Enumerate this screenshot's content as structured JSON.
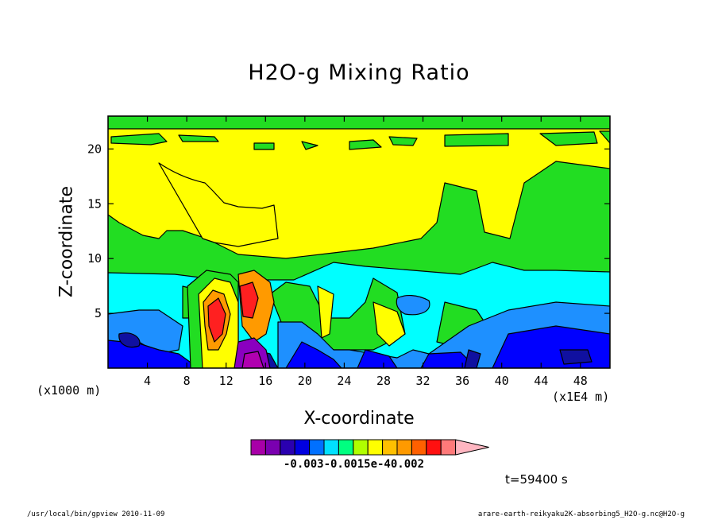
{
  "chart_data": {
    "type": "heatmap",
    "title": "H2O-g Mixing Ratio",
    "xlabel": "X-coordinate",
    "ylabel": "Z-coordinate",
    "x_unit_left": "(x1000 m)",
    "x_unit_right": "(x1E4 m)",
    "xlim": [
      0,
      51
    ],
    "ylim": [
      0,
      23
    ],
    "xticks": [
      "4",
      "8",
      "12",
      "16",
      "20",
      "24",
      "28",
      "32",
      "36",
      "40",
      "44",
      "48"
    ],
    "xtick_values": [
      4,
      8,
      12,
      16,
      20,
      24,
      28,
      32,
      36,
      40,
      44,
      48
    ],
    "yticks": [
      "5",
      "10",
      "15",
      "20"
    ],
    "ytick_values": [
      5,
      10,
      15,
      20
    ],
    "colorbar_tick_text": "-0.003-0.0015e-40.002",
    "colorbar_colors": [
      "#a800a8",
      "#7a00b0",
      "#2a00b0",
      "#0000e0",
      "#0070ff",
      "#00e0ff",
      "#00ff80",
      "#b0ff00",
      "#ffff00",
      "#ffc000",
      "#ff9a00",
      "#ff6000",
      "#ff1010",
      "#ff7a7a",
      "#ffb6c1"
    ],
    "field_colors": {
      "green": "#22dd22",
      "yellow": "#ffff00",
      "cyan": "#00ffff",
      "lightblue": "#1e90ff",
      "blue": "#0000ff",
      "darkblue": "#1010a0",
      "purple": "#8a00c0",
      "magenta": "#b000b0",
      "orange": "#ff9a00",
      "red": "#ff2020",
      "lightyellow": "#f2ff70"
    }
  },
  "time_label": "t=59400 s",
  "footer": {
    "left": "/usr/local/bin/gpview  2010-11-09",
    "right": "arare-earth-reikyaku2K-absorbing5_H2O-g.nc@H2O-g"
  }
}
